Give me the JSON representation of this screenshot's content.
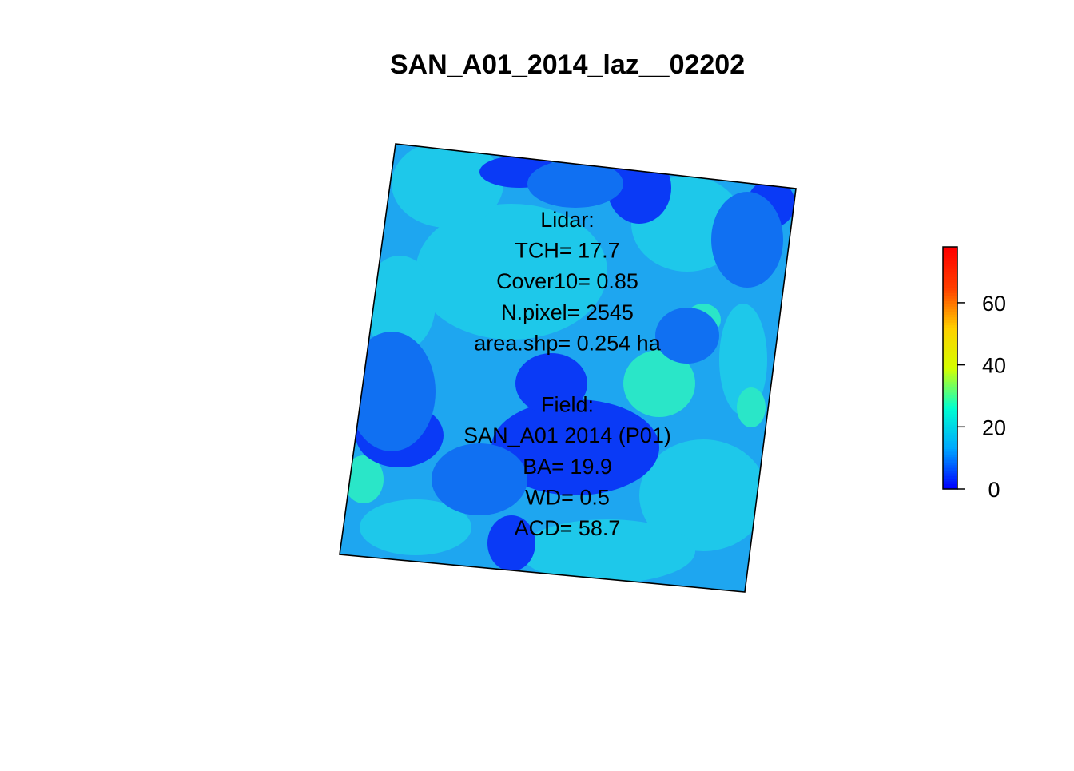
{
  "chart_data": {
    "type": "heatmap",
    "title": "SAN_A01_2014_laz__02202",
    "colorbar": {
      "ticks": [
        "0",
        "20",
        "40",
        "60"
      ],
      "tick_values": [
        0,
        20,
        40,
        60
      ],
      "range": [
        0,
        78
      ],
      "colors": [
        "#0000ff",
        "#00a8ff",
        "#00ffd0",
        "#d4ff00",
        "#ffd000",
        "#ff4000",
        "#ff0000"
      ]
    },
    "raster_colors": {
      "cyan": "#1ec8ea",
      "sky": "#1ea6f0",
      "blue": "#1070f2",
      "deep": "#0a3af6",
      "teal": "#2ae6c8"
    },
    "annotation": {
      "lines": [
        "Lidar:",
        "TCH= 17.7",
        "Cover10= 0.85",
        "N.pixel= 2545",
        "area.shp= 0.254 ha",
        "",
        "Field:",
        "SAN_A01 2014 (P01)",
        "BA= 19.9",
        "WD= 0.5",
        "ACD= 58.7"
      ]
    }
  }
}
